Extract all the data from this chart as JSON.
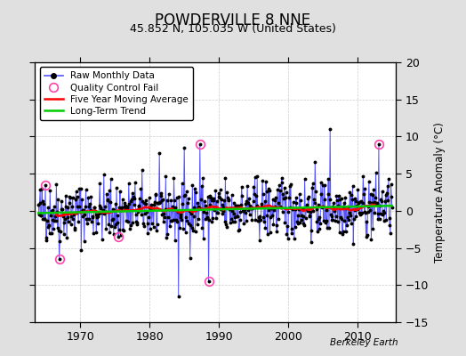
{
  "title": "POWDERVILLE 8 NNE",
  "subtitle": "45.852 N, 105.035 W (United States)",
  "ylabel": "Temperature Anomaly (°C)",
  "credit": "Berkeley Earth",
  "ylim": [
    -15,
    20
  ],
  "yticks": [
    -15,
    -10,
    -5,
    0,
    5,
    10,
    15,
    20
  ],
  "xlim": [
    1963.5,
    2015.5
  ],
  "xticks": [
    1970,
    1980,
    1990,
    2000,
    2010
  ],
  "bg_color": "#e0e0e0",
  "plot_bg_color": "#ffffff",
  "raw_line_color": "#5555ff",
  "raw_dot_color": "#000000",
  "moving_avg_color": "#ff0000",
  "trend_color": "#00cc00",
  "qc_fail_color": "#ff44aa",
  "seed": 42,
  "n_months": 612,
  "start_year": 1964.0
}
